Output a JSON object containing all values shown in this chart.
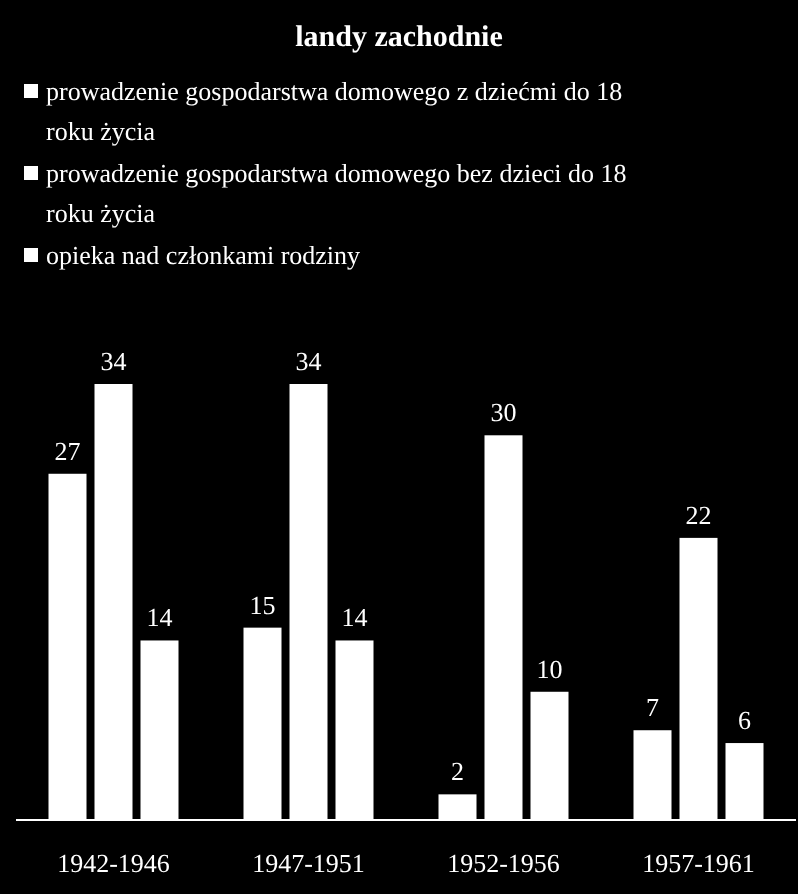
{
  "chart_data": {
    "type": "bar",
    "title": "landy zachodnie",
    "categories": [
      "1942-1946",
      "1947-1951",
      "1952-1956",
      "1957-1961"
    ],
    "series": [
      {
        "name": "prowadzenie gospodarstwa domowego z dziećmi do 18 roku życia",
        "color": "#ffffff",
        "values": [
          27,
          15,
          2,
          7
        ]
      },
      {
        "name": "prowadzenie gospodarstwa domowego bez dzieci do 18 roku życia",
        "color": "#ffffff",
        "values": [
          34,
          34,
          30,
          22
        ]
      },
      {
        "name": "opieka nad członkami rodziny",
        "color": "#ffffff",
        "values": [
          14,
          14,
          10,
          6
        ]
      }
    ],
    "data_labels": true,
    "legend": "top"
  }
}
